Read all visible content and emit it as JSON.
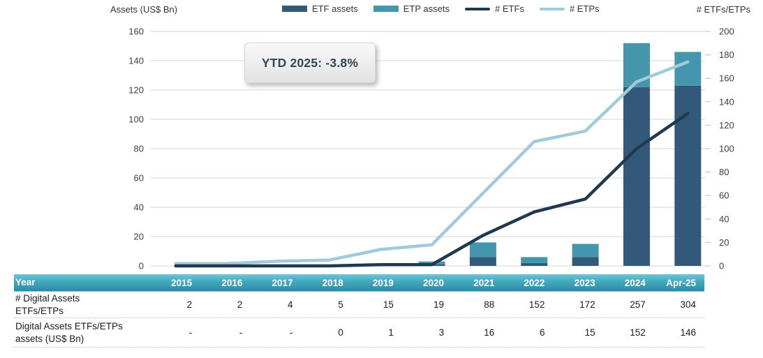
{
  "colors": {
    "etf_bar": "#32587a",
    "etp_bar": "#4496ac",
    "etfs_line": "#21394e",
    "etps_line": "#9fcbda",
    "grid": "#d6d6d6",
    "tick": "#bdbdbd",
    "axis_text": "#3d3d3d",
    "table_header_top": "#6cc5d5",
    "table_header_bottom": "#2a8ca4",
    "annotation_text": "#2d4759"
  },
  "axes_titles": {
    "left": "Assets (US$ Bn)",
    "right": "# ETFs/ETPs"
  },
  "legend": [
    {
      "label": "ETF assets",
      "type": "bar",
      "color": "#32587a"
    },
    {
      "label": "ETP assets",
      "type": "bar",
      "color": "#4496ac"
    },
    {
      "label": "# ETFs",
      "type": "line",
      "color": "#21394e"
    },
    {
      "label": "# ETPs",
      "type": "line",
      "color": "#9fcbda"
    }
  ],
  "annotation": {
    "text": "YTD 2025: -3.8%"
  },
  "chart_data": {
    "type": "combo",
    "categories": [
      "2015",
      "2016",
      "2017",
      "2018",
      "2019",
      "2020",
      "2021",
      "2022",
      "2023",
      "2024",
      "Apr-25"
    ],
    "series": [
      {
        "name": "ETF assets",
        "type": "bar",
        "axis": "left",
        "stack": "assets",
        "color": "#32587a",
        "values": [
          null,
          null,
          null,
          0,
          0,
          1,
          6,
          2,
          6,
          122,
          123
        ]
      },
      {
        "name": "ETP assets",
        "type": "bar",
        "axis": "left",
        "stack": "assets",
        "color": "#4496ac",
        "values": [
          null,
          null,
          null,
          0,
          1,
          2,
          10,
          4,
          9,
          30,
          23
        ]
      },
      {
        "name": "# ETFs",
        "type": "line",
        "axis": "right",
        "color": "#21394e",
        "values": [
          0,
          0,
          0,
          0,
          1,
          1,
          26,
          46,
          57,
          100,
          130
        ]
      },
      {
        "name": "# ETPs",
        "type": "line",
        "axis": "right",
        "color": "#9fcbda",
        "values": [
          2,
          2,
          4,
          5,
          14,
          18,
          62,
          106,
          115,
          157,
          174
        ]
      }
    ],
    "left_axis": {
      "title": "Assets (US$ Bn)",
      "min": 0,
      "max": 160,
      "step": 20
    },
    "right_axis": {
      "title": "# ETFs/ETPs",
      "min": 0,
      "max": 200,
      "step": 20
    },
    "grid": true,
    "legend_position": "top",
    "annotation": "YTD 2025: -3.8%"
  },
  "table": {
    "header_label": "Year",
    "columns": [
      "2015",
      "2016",
      "2017",
      "2018",
      "2019",
      "2020",
      "2021",
      "2022",
      "2023",
      "2024",
      "Apr-25"
    ],
    "rows": [
      {
        "label": "# Digital Assets ETFs/ETPs",
        "values": [
          "2",
          "2",
          "4",
          "5",
          "15",
          "19",
          "88",
          "152",
          "172",
          "257",
          "304"
        ]
      },
      {
        "label": "Digital Assets ETFs/ETPs assets (US$ Bn)",
        "values": [
          "-",
          "-",
          "-",
          "0",
          "1",
          "3",
          "16",
          "6",
          "15",
          "152",
          "146"
        ]
      }
    ]
  }
}
